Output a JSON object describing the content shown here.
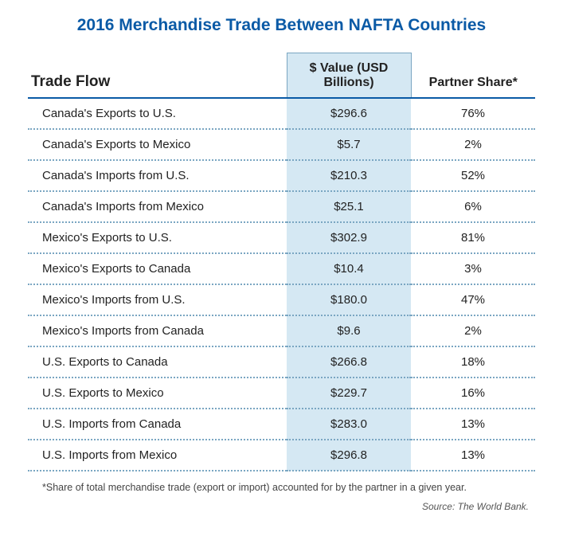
{
  "title": "2016 Merchandise Trade Between NAFTA Countries",
  "colors": {
    "title": "#0a5aa6",
    "header_border": "#7aa6c2",
    "header_rule": "#0a5aa6",
    "highlight_bg": "#d5e8f3",
    "row_dots": "#7aa6c2",
    "text": "#222222",
    "footnote": "#444444",
    "source": "#555555"
  },
  "columns": [
    "Trade Flow",
    "$ Value (USD Billions)",
    "Partner Share*"
  ],
  "rows": [
    {
      "flow": "Canada's Exports to U.S.",
      "value": "$296.6",
      "share": "76%"
    },
    {
      "flow": "Canada's Exports to Mexico",
      "value": "$5.7",
      "share": "2%"
    },
    {
      "flow": "Canada's Imports from U.S.",
      "value": "$210.3",
      "share": "52%"
    },
    {
      "flow": "Canada's Imports from Mexico",
      "value": "$25.1",
      "share": "6%"
    },
    {
      "flow": "Mexico's Exports to U.S.",
      "value": "$302.9",
      "share": "81%"
    },
    {
      "flow": "Mexico's Exports to Canada",
      "value": "$10.4",
      "share": "3%"
    },
    {
      "flow": "Mexico's Imports from U.S.",
      "value": "$180.0",
      "share": "47%"
    },
    {
      "flow": "Mexico's Imports from Canada",
      "value": "$9.6",
      "share": "2%"
    },
    {
      "flow": "U.S. Exports to Canada",
      "value": "$266.8",
      "share": "18%"
    },
    {
      "flow": "U.S. Exports to Mexico",
      "value": "$229.7",
      "share": "16%"
    },
    {
      "flow": "U.S. Imports from Canada",
      "value": "$283.0",
      "share": "13%"
    },
    {
      "flow": "U.S. Imports from Mexico",
      "value": "$296.8",
      "share": "13%"
    }
  ],
  "footnote": "*Share of total merchandise trade (export or import) accounted for by the partner in a given year.",
  "source": "Source: The World Bank."
}
